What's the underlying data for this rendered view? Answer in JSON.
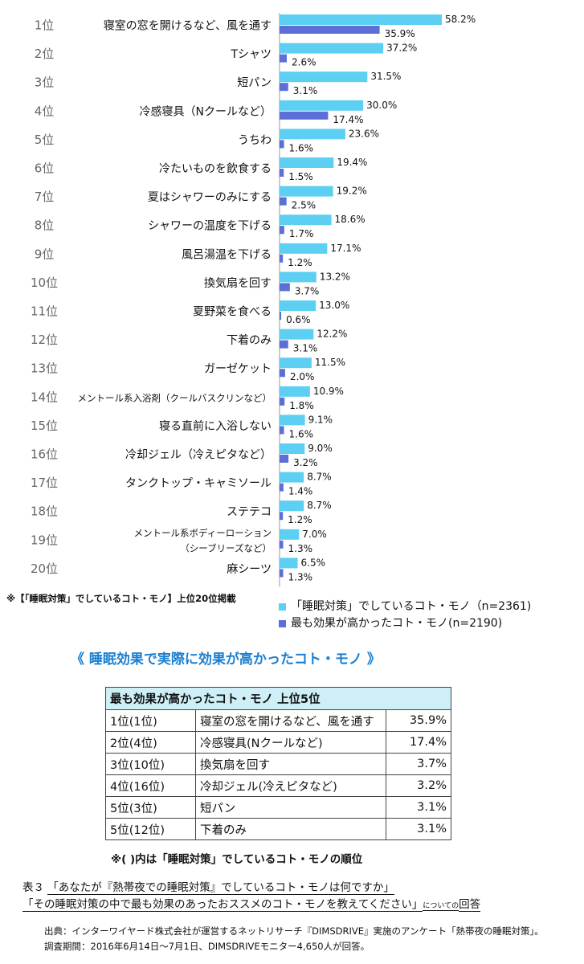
{
  "chart_data": {
    "type": "bar",
    "orientation": "horizontal",
    "ranks": [
      "1位",
      "2位",
      "3位",
      "4位",
      "5位",
      "6位",
      "7位",
      "8位",
      "9位",
      "10位",
      "11位",
      "12位",
      "13位",
      "14位",
      "15位",
      "16位",
      "17位",
      "18位",
      "19位",
      "20位"
    ],
    "categories": [
      "寝室の窓を開けるなど、風を通す",
      "Tシャツ",
      "短パン",
      "冷感寝具（Nクールなど）",
      "うちわ",
      "冷たいものを飲食する",
      "夏はシャワーのみにする",
      "シャワーの温度を下げる",
      "風呂湯温を下げる",
      "換気扇を回す",
      "夏野菜を食べる",
      "下着のみ",
      "ガーゼケット",
      "メントール系入浴剤（クールバスクリンなど）",
      "寝る直前に入浴しない",
      "冷却ジェル（冷えピタなど）",
      "タンクトップ・キャミソール",
      "ステテコ",
      "メントール系ボディーローション（シーブリーズなど）",
      "麻シーツ"
    ],
    "category_lines": {
      "18": [
        "メントール系ボディーローション",
        "（シーブリーズなど）"
      ]
    },
    "series": [
      {
        "name": "「睡眠対策」でしているコト・モノ（n=2361）",
        "color": "#5ccff2",
        "values": [
          58.2,
          37.2,
          31.5,
          30.0,
          23.6,
          19.4,
          19.2,
          18.6,
          17.1,
          13.2,
          13.0,
          12.2,
          11.5,
          10.9,
          9.1,
          9.0,
          8.7,
          8.7,
          7.0,
          6.5
        ]
      },
      {
        "name": "最も効果が高かったコト・モノ(n=2190)",
        "color": "#5b6fd6",
        "values": [
          35.9,
          2.6,
          3.1,
          17.4,
          1.6,
          1.5,
          2.5,
          1.7,
          1.2,
          3.7,
          0.6,
          3.1,
          2.0,
          1.8,
          1.6,
          3.2,
          1.4,
          1.2,
          1.3,
          1.3
        ]
      }
    ],
    "value_suffix": "%",
    "footnote": "※【「睡眠対策」でしているコト・モノ】上位20位掲載"
  },
  "legend": {
    "items": [
      {
        "label": "「睡眠対策」でしているコト・モノ（n=2361)",
        "color": "#5ccff2"
      },
      {
        "label": "最も効果が高かったコト・モノ(n=2190)",
        "color": "#5b6fd6"
      }
    ]
  },
  "section_title": "《 睡眠効果で実際に効果が高かったコト・モノ 》",
  "top5_table": {
    "header": "最も効果が高かったコト・モノ 上位5位",
    "rows": [
      {
        "rank": "1位(1位)",
        "item": "寝室の窓を開けるなど、風を通す",
        "value": "35.9%"
      },
      {
        "rank": "2位(4位)",
        "item": "冷感寝具(Nクールなど)",
        "value": "17.4%"
      },
      {
        "rank": "3位(10位)",
        "item": "換気扇を回す",
        "value": "3.7%"
      },
      {
        "rank": "4位(16位)",
        "item": "冷却ジェル(冷えピタなど)",
        "value": "3.2%"
      },
      {
        "rank": "5位(3位)",
        "item": "短パン",
        "value": "3.1%"
      },
      {
        "rank": "5位(12位)",
        "item": "下着のみ",
        "value": "3.1%"
      }
    ],
    "note": "※( )内は「睡眠対策」でしているコト・モノの順位"
  },
  "caption": {
    "line1_prefix": "表３",
    "line1_question": "「あなたが『熱帯夜での睡眠対策』でしているコト・モノは何ですか」",
    "line2_question": "「その睡眠対策の中で最も効果のあったおススメのコト・モノを教えてください」",
    "line2_small": "についての",
    "line2_end": "回答"
  },
  "source": {
    "line1": "出典：インターワイヤード株式会社が運営するネットリサーチ『DIMSDRIVE』実施のアンケート「熱帯夜の睡眠対策」。",
    "line2": "調査期間：2016年6月14日～7月1日、DIMSDRIVEモニター4,650人が回答。"
  }
}
